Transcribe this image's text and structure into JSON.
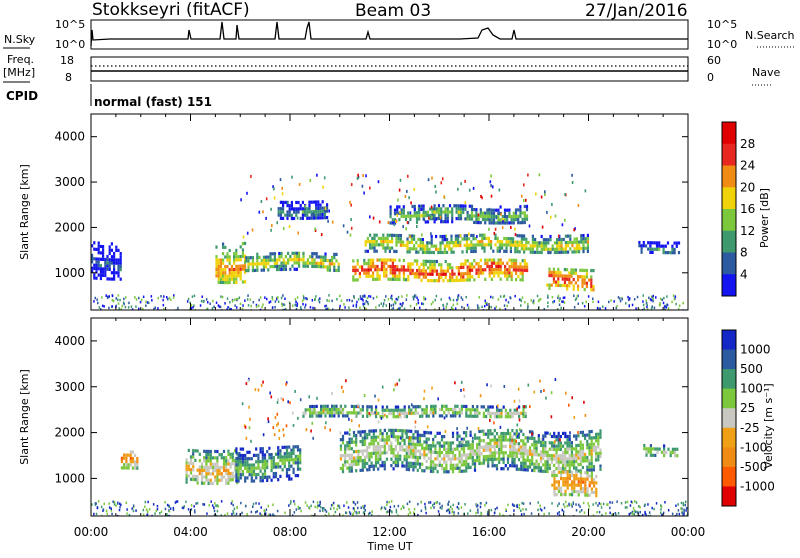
{
  "header": {
    "station": "Stokkseyri (fitACF)",
    "beam": "Beam 03",
    "date": "27/Jan/2016"
  },
  "top_panels": {
    "nsky_label": "N.Sky",
    "nsearch_label": "N.Search",
    "nsky_ticks": [
      "10^5",
      "10^0"
    ],
    "nsearch_ticks": [
      "10^5",
      "10^0"
    ],
    "freq_label_1": "Freq.",
    "freq_label_2": "[MHz]",
    "freq_ticks": [
      "18",
      "8"
    ],
    "nave_label": "Nave",
    "nave_ticks": [
      "60",
      "0"
    ],
    "cpid_label": "CPID",
    "cpid_text": "normal (fast) 151"
  },
  "chart_data": [
    {
      "type": "heatmap",
      "panel": "power",
      "ylabel": "Slant Range [km]",
      "xlabel": "",
      "ylim": [
        180,
        4500
      ],
      "yticks": [
        "1000",
        "2000",
        "3000",
        "4000"
      ],
      "colorbar_label": "Power [dB]",
      "colorbar_ticks": [
        "4",
        "8",
        "12",
        "16",
        "20",
        "24",
        "28"
      ],
      "colors": [
        "#1414f0",
        "#2c5aa0",
        "#3e9a6e",
        "#7cc83c",
        "#f0d20a",
        "#f08c14",
        "#e82820",
        "#e00000"
      ],
      "regions": [
        {
          "t": [
            0.0,
            1.2
          ],
          "r": [
            900,
            1700
          ],
          "level": 1
        },
        {
          "t": [
            5.0,
            6.2
          ],
          "r": [
            800,
            1700
          ],
          "level": 5
        },
        {
          "t": [
            6.2,
            10.0
          ],
          "r": [
            1050,
            1450
          ],
          "level": 4
        },
        {
          "t": [
            10.5,
            17.5
          ],
          "r": [
            850,
            1300
          ],
          "level": 6
        },
        {
          "t": [
            11.0,
            20.0
          ],
          "r": [
            1450,
            1850
          ],
          "level": 4
        },
        {
          "t": [
            18.3,
            20.2
          ],
          "r": [
            650,
            1100
          ],
          "level": 6
        },
        {
          "t": [
            22.0,
            23.6
          ],
          "r": [
            1450,
            1700
          ],
          "level": 2
        },
        {
          "t": [
            7.5,
            9.5
          ],
          "r": [
            2200,
            2600
          ],
          "level": 2
        },
        {
          "t": [
            12.0,
            17.5
          ],
          "r": [
            2100,
            2500
          ],
          "level": 3
        }
      ]
    },
    {
      "type": "heatmap",
      "panel": "velocity",
      "ylabel": "Slant Range [km]",
      "xlabel": "Time UT",
      "ylim": [
        180,
        4500
      ],
      "yticks": [
        "1000",
        "2000",
        "3000",
        "4000"
      ],
      "x_ticks": [
        "00:00",
        "04:00",
        "08:00",
        "12:00",
        "16:00",
        "20:00",
        "00:00"
      ],
      "colorbar_label": "Velocity [m s⁻¹]",
      "colorbar_ticks": [
        "1000",
        "500",
        "100",
        "25",
        "-25",
        "-100",
        "-500",
        "-1000"
      ],
      "colors": [
        "#1428c8",
        "#2c5aa0",
        "#3e9a6e",
        "#7cc83c",
        "#c8c8c0",
        "#f0a014",
        "#f08c14",
        "#ff5a00",
        "#e00000"
      ],
      "regions": [
        {
          "t": [
            3.8,
            6.0
          ],
          "r": [
            900,
            1650
          ],
          "level": 5
        },
        {
          "t": [
            5.8,
            8.4
          ],
          "r": [
            1000,
            1700
          ],
          "level": 3
        },
        {
          "t": [
            10.0,
            20.5
          ],
          "r": [
            1150,
            2050
          ],
          "level": 4
        },
        {
          "t": [
            8.5,
            17.5
          ],
          "r": [
            2350,
            2600
          ],
          "level": 4
        },
        {
          "t": [
            18.5,
            20.3
          ],
          "r": [
            600,
            1150
          ],
          "level": 6
        },
        {
          "t": [
            1.2,
            1.9
          ],
          "r": [
            1200,
            1600
          ],
          "level": 6
        },
        {
          "t": [
            22.2,
            23.6
          ],
          "r": [
            1500,
            1750
          ],
          "level": 4
        }
      ]
    }
  ]
}
